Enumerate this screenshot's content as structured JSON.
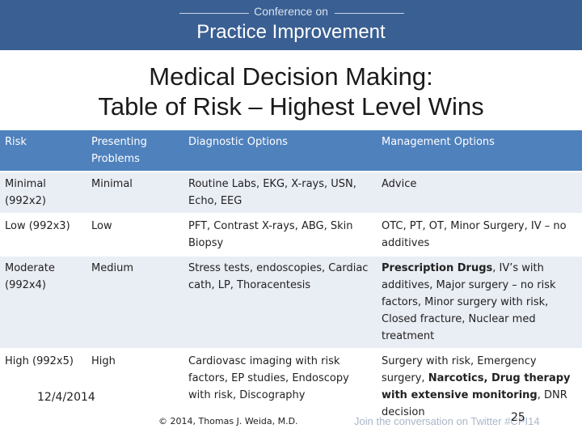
{
  "banner": {
    "small": "Conference on",
    "big": "Practice Improvement"
  },
  "title": {
    "line1": "Medical Decision Making:",
    "line2": "Table of Risk – Highest Level Wins"
  },
  "table": {
    "headers": [
      "Risk",
      "Presenting Problems",
      "Diagnostic Options",
      "Management Options"
    ],
    "rows": [
      {
        "risk": "Minimal (992x2)",
        "problems": "Minimal",
        "diagnostic": "Routine Labs, EKG, X-rays, USN, Echo, EEG",
        "management": "Advice"
      },
      {
        "risk": "Low (992x3)",
        "problems": "Low",
        "diagnostic": "PFT, Contrast X-rays, ABG, Skin Biopsy",
        "management": "OTC, PT, OT, Minor Surgery, IV – no additives"
      },
      {
        "risk": "Moderate (992x4)",
        "problems": "Medium",
        "diagnostic": "Stress tests, endoscopies, Cardiac cath, LP, Thoracentesis",
        "management_bold": "Prescription Drugs",
        "management_rest": ", IV’s with additives, Major surgery – no risk factors, Minor surgery with risk, Closed fracture, Nuclear med treatment"
      },
      {
        "risk": "High (992x5)",
        "problems": "High",
        "diagnostic": "Cardiovasc imaging with risk factors, EP studies, Endoscopy with risk, Discography",
        "management_a": "Surgery with risk, Emergency surgery, ",
        "management_bold": "Narcotics, Drug therapy with extensive monitoring",
        "management_b": ", DNR decision"
      }
    ]
  },
  "footer": {
    "date": "12/4/2014",
    "copyright": "© 2014, Thomas J. Weida, M.D.",
    "twitter": "Join the conversation on Twitter #CPI14",
    "page": "25"
  }
}
